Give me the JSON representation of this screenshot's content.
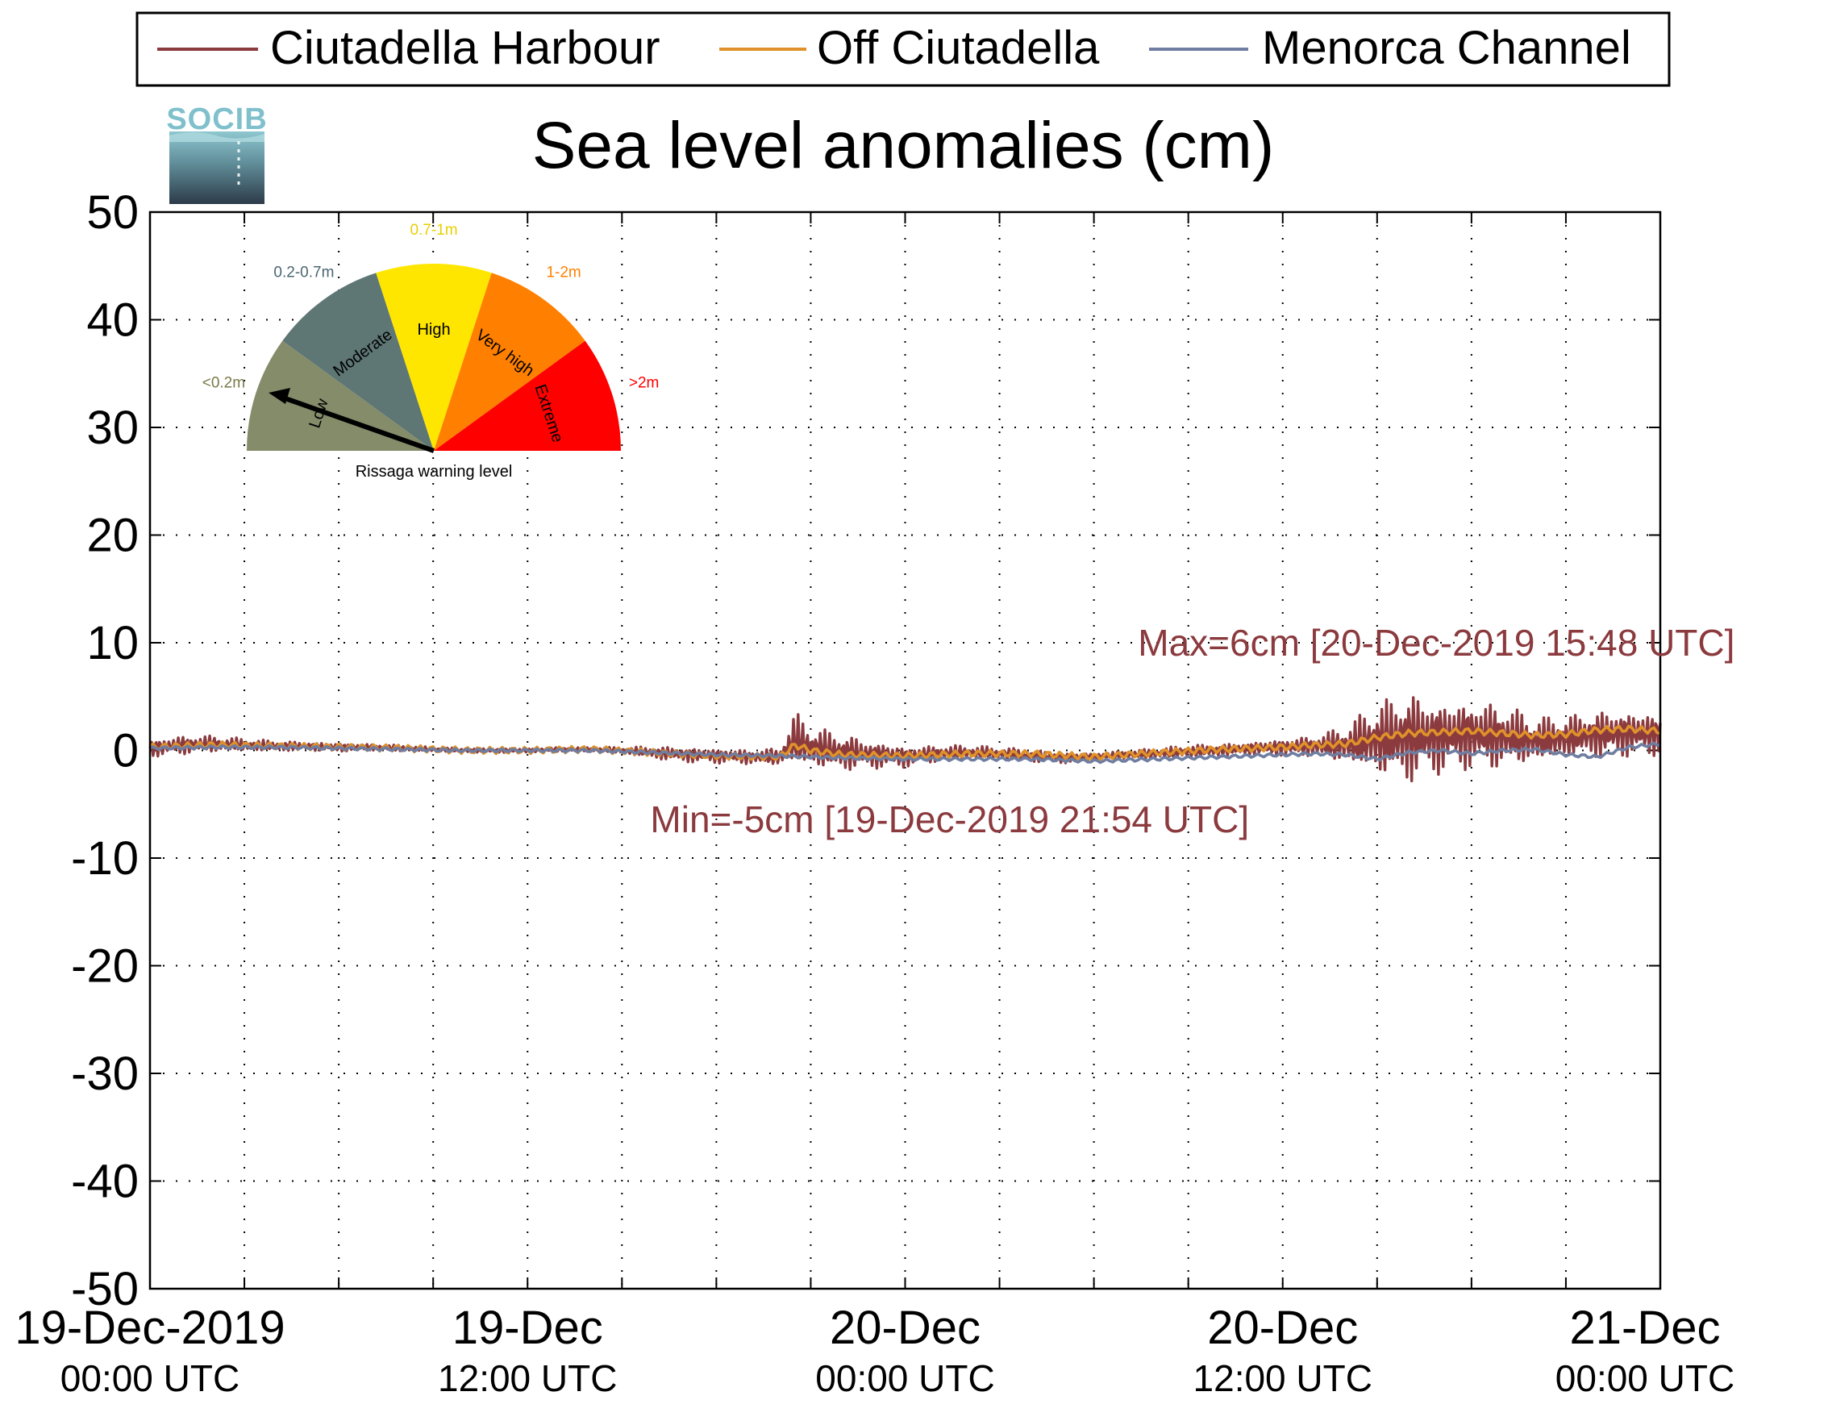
{
  "logo": {
    "text": "SOCIB"
  },
  "legend": {
    "items": [
      {
        "label": "Ciutadella Harbour",
        "color": "#8b3a3e"
      },
      {
        "label": "Off Ciutadella",
        "color": "#e0922a"
      },
      {
        "label": "Menorca Channel",
        "color": "#6f7da0"
      }
    ]
  },
  "gauge": {
    "title": "Rissaga warning level",
    "sectors": [
      {
        "name": "Low",
        "range": "<0.2m",
        "color": "#848c6a",
        "range_color": "#7a7a4a"
      },
      {
        "name": "Moderate",
        "range": "0.2-0.7m",
        "color": "#5e7775",
        "range_color": "#4a6672"
      },
      {
        "name": "High",
        "range": "0.7-1m",
        "color": "#ffe600",
        "range_color": "#e8d000"
      },
      {
        "name": "Very high",
        "range": "1-2m",
        "color": "#ff8000",
        "range_color": "#ff8000"
      },
      {
        "name": "Extreme",
        "range": ">2m",
        "color": "#ff0000",
        "range_color": "#ff0000"
      }
    ],
    "needle_level": "Low"
  },
  "chart_data": {
    "type": "line",
    "title": "Sea level anomalies (cm)",
    "ylim": [
      -50,
      50
    ],
    "yticks": [
      50,
      40,
      30,
      20,
      10,
      0,
      -10,
      -20,
      -30,
      -40,
      -50
    ],
    "xlim_hours": [
      0,
      48
    ],
    "xticks": [
      {
        "hour": 0,
        "line1": "19-Dec-2019",
        "line2": "00:00 UTC"
      },
      {
        "hour": 12,
        "line1": "19-Dec",
        "line2": "12:00 UTC"
      },
      {
        "hour": 24,
        "line1": "20-Dec",
        "line2": "00:00 UTC"
      },
      {
        "hour": 36,
        "line1": "20-Dec",
        "line2": "12:00 UTC"
      },
      {
        "hour": 48,
        "line1": "21-Dec",
        "line2": "00:00 UTC"
      }
    ],
    "grid": true,
    "legend_position": "top",
    "annotations": {
      "max": {
        "text": "Max=6cm [20-Dec-2019 15:48 UTC]",
        "hour": 31.4,
        "y": 8.8,
        "color": "#8b3a3e"
      },
      "min": {
        "text": "Min=-5cm [19-Dec-2019 21:54 UTC]",
        "hour": 15.9,
        "y": -7.6,
        "color": "#8b3a3e"
      }
    },
    "series": [
      {
        "name": "Ciutadella Harbour",
        "color": "#8b3a3e",
        "x": [
          0,
          1,
          2,
          3,
          4,
          5,
          6,
          7,
          8,
          9,
          10,
          11,
          12,
          13,
          14,
          15,
          16,
          17,
          18,
          19,
          20,
          20.5,
          21,
          22,
          23,
          24,
          25,
          26,
          27,
          28,
          29,
          30,
          31,
          32,
          33,
          34,
          35,
          36,
          37,
          38,
          39,
          40,
          41,
          42,
          43,
          44,
          45,
          46,
          47,
          48
        ],
        "y": [
          0.2,
          0.5,
          0.6,
          0.5,
          0.4,
          0.4,
          0.3,
          0.3,
          0.2,
          0.1,
          0.0,
          0.0,
          0.0,
          0.1,
          0.1,
          0.0,
          -0.2,
          -0.4,
          -0.5,
          -0.6,
          -0.6,
          1.0,
          0.3,
          -0.2,
          -0.4,
          -0.6,
          -0.3,
          -0.2,
          -0.3,
          -0.5,
          -0.7,
          -0.6,
          -0.4,
          -0.3,
          -0.1,
          0.0,
          0.2,
          0.3,
          0.4,
          0.5,
          1.0,
          1.2,
          1.3,
          1.5,
          1.3,
          0.9,
          1.2,
          1.5,
          1.6,
          1.5
        ],
        "amp": [
          0.8,
          0.9,
          0.8,
          0.6,
          0.5,
          0.4,
          0.4,
          0.3,
          0.3,
          0.2,
          0.2,
          0.2,
          0.2,
          0.2,
          0.2,
          0.3,
          0.6,
          0.7,
          0.7,
          0.7,
          0.8,
          2.6,
          2.0,
          1.8,
          1.3,
          1.0,
          0.8,
          0.7,
          0.6,
          0.6,
          0.5,
          0.4,
          0.4,
          0.5,
          0.6,
          0.6,
          0.6,
          0.8,
          1.0,
          1.8,
          3.5,
          4.5,
          3.5,
          3.3,
          3.2,
          2.2,
          2.0,
          2.3,
          2.2,
          2.0
        ]
      },
      {
        "name": "Off Ciutadella",
        "color": "#e0922a",
        "x": [
          0,
          2,
          4,
          6,
          8,
          10,
          12,
          14,
          16,
          18,
          20,
          20.5,
          21,
          22,
          24,
          26,
          28,
          30,
          32,
          34,
          36,
          37,
          38,
          39,
          40,
          41,
          42,
          43,
          44,
          45,
          46,
          47,
          48
        ],
        "y": [
          0.3,
          0.5,
          0.4,
          0.3,
          0.2,
          0.0,
          0.0,
          0.1,
          -0.2,
          -0.5,
          -0.6,
          0.5,
          0.0,
          -0.4,
          -0.5,
          -0.3,
          -0.3,
          -0.6,
          -0.2,
          0.1,
          0.3,
          0.5,
          0.6,
          1.2,
          1.6,
          1.7,
          1.8,
          1.6,
          1.4,
          1.5,
          1.9,
          2.0,
          1.8
        ]
      },
      {
        "name": "Menorca Channel",
        "color": "#6f7da0",
        "x": [
          0,
          2,
          4,
          6,
          8,
          10,
          12,
          14,
          16,
          18,
          20,
          21,
          22,
          24,
          26,
          28,
          30,
          32,
          34,
          36,
          37,
          38,
          39,
          40,
          41,
          42,
          43,
          44,
          45,
          46,
          47,
          48
        ],
        "y": [
          0.2,
          0.3,
          0.3,
          0.2,
          0.1,
          0.0,
          0.0,
          0.0,
          -0.2,
          -0.4,
          -0.5,
          -0.6,
          -0.7,
          -0.8,
          -0.8,
          -0.8,
          -1.0,
          -0.8,
          -0.6,
          -0.4,
          -0.3,
          -0.4,
          -0.8,
          -0.2,
          0.0,
          -0.3,
          0.0,
          0.1,
          -0.4,
          -0.6,
          0.3,
          0.6
        ]
      }
    ]
  }
}
